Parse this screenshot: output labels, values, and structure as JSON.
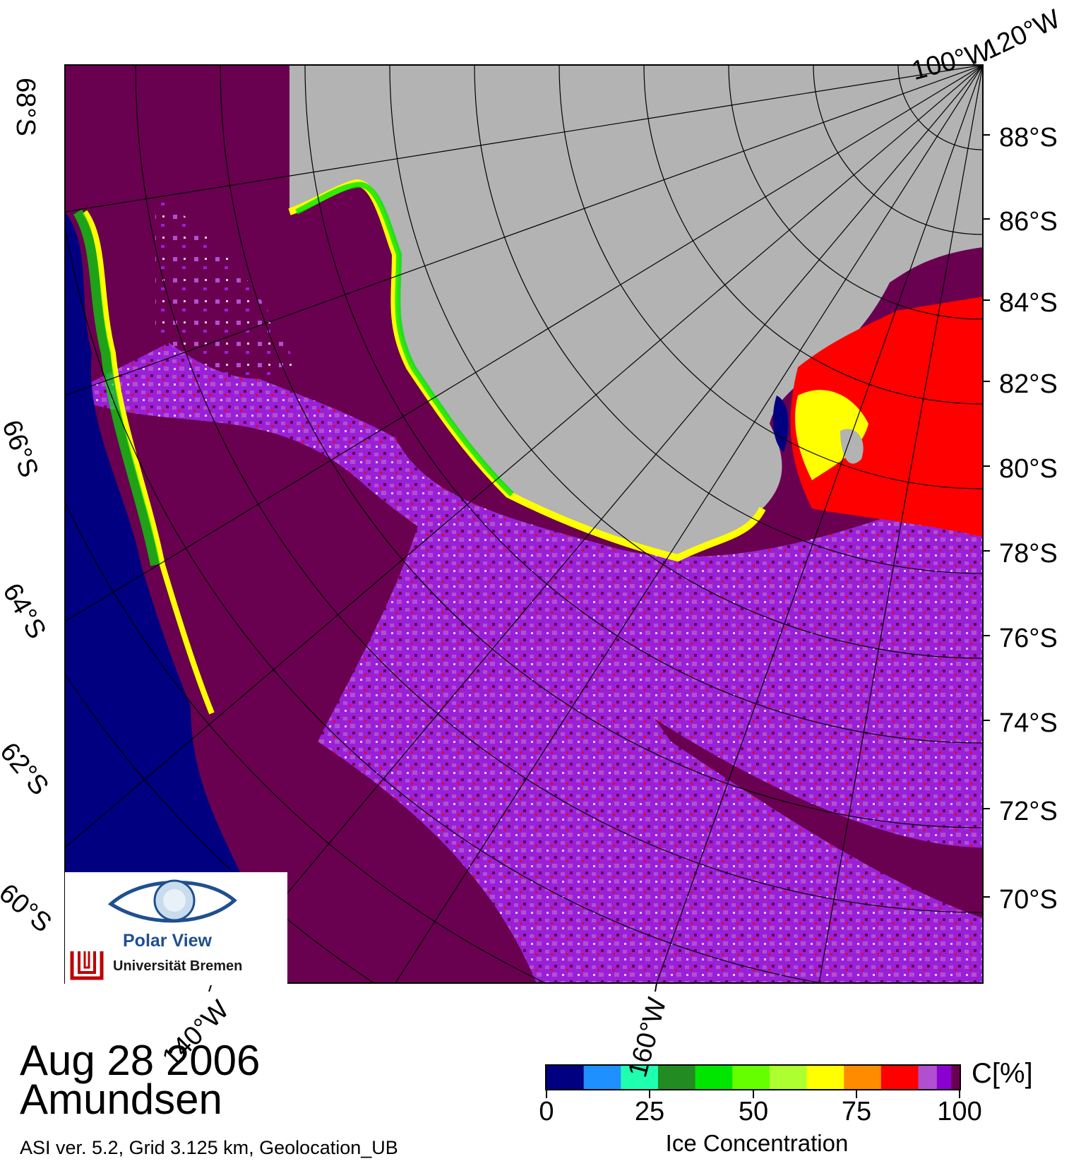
{
  "date": "Aug 28 2006",
  "region": "Amundsen",
  "info": "ASI ver. 5.2,  Grid 3.125 km, Geolocation_UB",
  "logo": {
    "name": "Polar View",
    "institution": "Universität Bremen"
  },
  "colorbar": {
    "title": "Ice Concentration",
    "unit": "C[%]",
    "ticks": [
      "0",
      "25",
      "50",
      "75",
      "100"
    ],
    "colors": [
      "#000080",
      "#1e90ff",
      "#1fffb0",
      "#228b22",
      "#00e600",
      "#66ff00",
      "#adff2f",
      "#ffff00",
      "#ff8c00",
      "#ff0000",
      "#b050d0",
      "#8a00d0",
      "#6a0050"
    ]
  },
  "lat_labels_right": [
    "88°S",
    "86°S",
    "84°S",
    "82°S",
    "80°S",
    "78°S",
    "76°S",
    "74°S",
    "72°S",
    "70°S"
  ],
  "lat_labels_left": [
    "68°S",
    "66°S",
    "64°S",
    "62°S",
    "60°S"
  ],
  "lon_labels": [
    "100°W",
    "120°W",
    "140°W",
    "160°W"
  ],
  "colors": {
    "land": "#b3b3b3",
    "open_water": "#000080",
    "full_ice": "#6a0050",
    "high_ice": "#9a20d8"
  }
}
